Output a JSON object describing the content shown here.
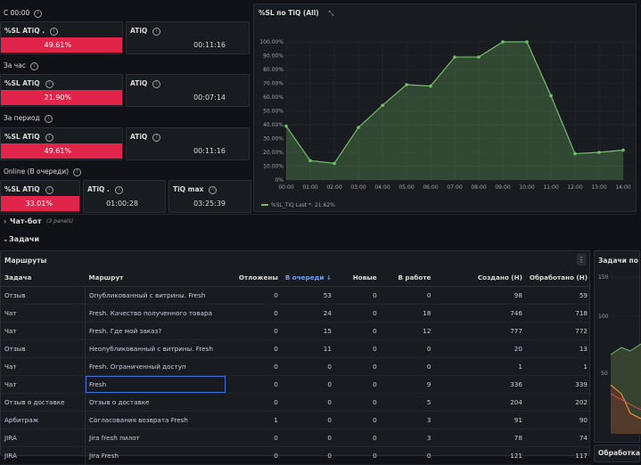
{
  "stats": {
    "s1": {
      "label": "С 00:00",
      "sl_title": "%SL ATiQ .",
      "sl_value": "49.61%",
      "atiq_title": "ATiQ",
      "atiq_value": "00:11:16"
    },
    "s2": {
      "label": "За час",
      "sl_title": "%SL ATiQ",
      "sl_value": "21.90%",
      "atiq_title": "ATiQ",
      "atiq_value": "00:07:14"
    },
    "s3": {
      "label": "За период",
      "sl_title": "%SL ATiQ",
      "sl_value": "49.61%",
      "atiq_title": "ATiQ",
      "atiq_value": "00:11:16"
    },
    "s4": {
      "label": "Online (В очереди)",
      "sl_title": "%SL ATiQ",
      "sl_value": "33.01%",
      "atiq_title": "ATiQ .",
      "atiq_value": "01:00:28",
      "max_title": "TiQ max",
      "max_value": "03:25:39"
    }
  },
  "chart": {
    "panel_title": "%SL по TiQ (All)",
    "legend": "%SL_TiQ  Last *: 21.62%",
    "color": "#73bf69"
  },
  "chart_data": {
    "type": "area",
    "x": [
      "00:00",
      "01:00",
      "02:00",
      "03:00",
      "04:00",
      "05:00",
      "06:00",
      "07:00",
      "08:00",
      "09:00",
      "10:00",
      "11:00",
      "12:00",
      "13:00",
      "14:00"
    ],
    "yticks": [
      "0%",
      "10.00%",
      "20.00%",
      "30.00%",
      "40.00%",
      "50.00%",
      "60.00%",
      "70.00%",
      "80.00%",
      "90.00%",
      "100.00%"
    ],
    "points": [
      [
        0,
        39
      ],
      [
        1,
        14
      ],
      [
        2,
        12
      ],
      [
        3,
        38
      ],
      [
        4,
        54
      ],
      [
        5,
        69
      ],
      [
        6,
        68
      ],
      [
        7,
        89
      ],
      [
        8,
        89
      ],
      [
        9,
        100
      ],
      [
        10,
        100
      ],
      [
        11,
        61
      ],
      [
        12,
        19
      ],
      [
        13,
        20
      ],
      [
        14,
        21.62
      ]
    ],
    "ylim": [
      0,
      100
    ],
    "series": [
      {
        "name": "%SL_TiQ"
      }
    ]
  },
  "sections": {
    "chat_bot": "Чат-бот",
    "chat_bot_count": "(3 panels)",
    "tasks": "Задачи"
  },
  "routes": {
    "title": "Маршруты",
    "columns": [
      "Задача",
      "Маршрут",
      "Отложены",
      "В очереди ↓",
      "Новые",
      "В работе",
      "Создано (Н)",
      "Обработано (Н)"
    ],
    "rows": [
      [
        "Отзыв",
        "Опубликованный с витрины. Fresh",
        "0",
        "53",
        "0",
        "0",
        "98",
        "59"
      ],
      [
        "Чат",
        "Fresh. Качество полученного товара",
        "0",
        "24",
        "0",
        "18",
        "746",
        "718"
      ],
      [
        "Чат",
        "Fresh. Где мой заказ?",
        "0",
        "15",
        "0",
        "12",
        "777",
        "772"
      ],
      [
        "Отзыв",
        "Неопубликованный с витрины. Fresh",
        "0",
        "11",
        "0",
        "0",
        "20",
        "13"
      ],
      [
        "Чат",
        "Fresh. Ограниченный доступ",
        "0",
        "0",
        "0",
        "0",
        "1",
        "1"
      ],
      [
        "Чат",
        "Fresh",
        "0",
        "0",
        "0",
        "9",
        "336",
        "339"
      ],
      [
        "Отзыв о доставке",
        "Отзыв о доставке",
        "0",
        "0",
        "0",
        "5",
        "204",
        "202"
      ],
      [
        "Арбитраж",
        "Согласования возврата Fresh",
        "1",
        "0",
        "0",
        "3",
        "91",
        "90"
      ],
      [
        "JIRA",
        "Jira fresh пилот",
        "0",
        "0",
        "0",
        "3",
        "78",
        "74"
      ],
      [
        "JIRA",
        "Jira Fresh",
        "0",
        "0",
        "0",
        "0",
        "121",
        "117"
      ]
    ]
  },
  "tasks_chart": {
    "title": "Задачи по",
    "yticks": [
      "150",
      "100",
      "50"
    ],
    "bottom_title": "Обработка"
  }
}
